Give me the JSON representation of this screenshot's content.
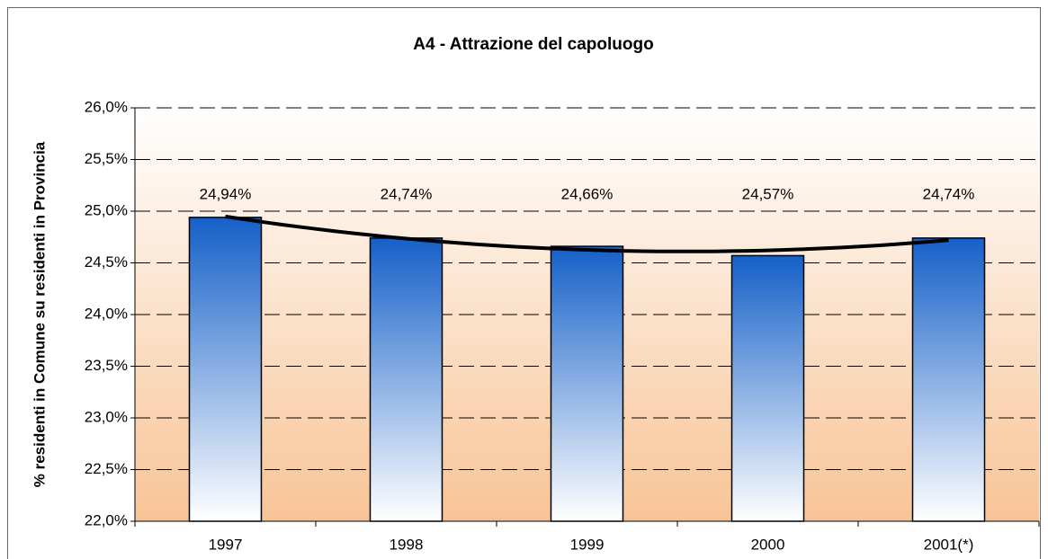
{
  "chart_data": {
    "type": "bar",
    "title": "A4 - Attrazione del capoluogo",
    "y_label": "% residenti in Comune su residenti in Provincia",
    "categories": [
      "1997",
      "1998",
      "1999",
      "2000",
      "2001(*)"
    ],
    "values": [
      24.94,
      24.74,
      24.66,
      24.57,
      24.74
    ],
    "value_labels": [
      "24,94%",
      "24,74%",
      "24,66%",
      "24,57%",
      "24,74%"
    ],
    "color": "#1560c8",
    "ylim": [
      22,
      26
    ],
    "yticks": [
      {
        "value": 22,
        "label": "22,0%"
      },
      {
        "value": 22.5,
        "label": "22,5%"
      },
      {
        "value": 23,
        "label": "23,0%"
      },
      {
        "value": 23.5,
        "label": "23,5%"
      },
      {
        "value": 24,
        "label": "24,0%"
      },
      {
        "value": 24.5,
        "label": "24,5%"
      },
      {
        "value": 25,
        "label": "25,0%"
      },
      {
        "value": 25.5,
        "label": "25,5%"
      },
      {
        "value": 26,
        "label": "26,0%"
      }
    ],
    "grid": true,
    "trendline": "polynomial"
  }
}
